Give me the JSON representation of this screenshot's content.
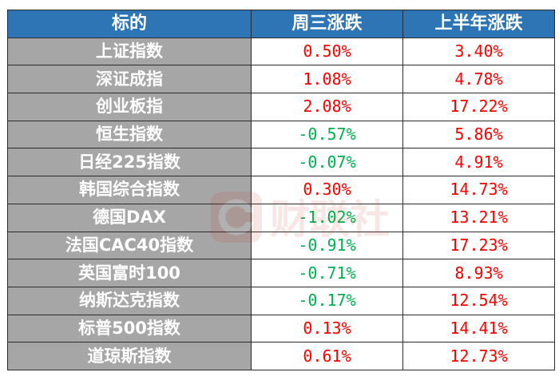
{
  "table": {
    "headers": [
      "标的",
      "周三涨跌",
      "上半年涨跌"
    ],
    "rows": [
      {
        "name": "上证指数",
        "wed": "0.50%",
        "h1": "3.40%"
      },
      {
        "name": "深证成指",
        "wed": "1.08%",
        "h1": "4.78%"
      },
      {
        "name": "创业板指",
        "wed": "2.08%",
        "h1": "17.22%"
      },
      {
        "name": "恒生指数",
        "wed": "-0.57%",
        "h1": "5.86%"
      },
      {
        "name": "日经225指数",
        "wed": "-0.07%",
        "h1": "4.91%"
      },
      {
        "name": "韩国综合指数",
        "wed": "0.30%",
        "h1": "14.73%"
      },
      {
        "name": "德国DAX",
        "wed": "-1.02%",
        "h1": "13.21%"
      },
      {
        "name": "法国CAC40指数",
        "wed": "-0.91%",
        "h1": "17.23%"
      },
      {
        "name": "英国富时100",
        "wed": "-0.71%",
        "h1": "8.93%"
      },
      {
        "name": "纳斯达克指数",
        "wed": "-0.17%",
        "h1": "12.54%"
      },
      {
        "name": "标普500指数",
        "wed": "0.13%",
        "h1": "14.41%"
      },
      {
        "name": "道琼斯指数",
        "wed": "0.61%",
        "h1": "12.73%"
      }
    ]
  },
  "watermark": {
    "text": "财联社",
    "icon": "cailianshe-logo-icon"
  },
  "colors": {
    "header_bg": "#2e75b6",
    "name_bg": "#a6a6a6",
    "up": "#ff0000",
    "down": "#00b050"
  }
}
